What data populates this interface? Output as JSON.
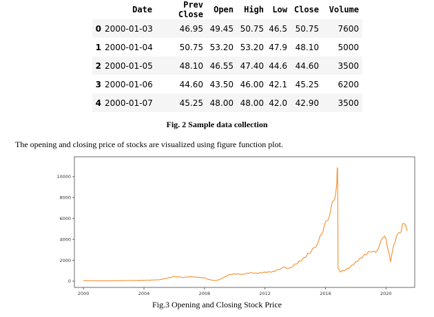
{
  "table": {
    "columns": [
      "",
      "Date",
      "Prev Close",
      "Open",
      "High",
      "Low",
      "Close",
      "Volume"
    ],
    "rows": [
      [
        "0",
        "2000-01-03",
        "46.95",
        "49.45",
        "50.75",
        "46.5",
        "50.75",
        "7600"
      ],
      [
        "1",
        "2000-01-04",
        "50.75",
        "53.20",
        "53.20",
        "47.9",
        "48.10",
        "5000"
      ],
      [
        "2",
        "2000-01-05",
        "48.10",
        "46.55",
        "47.40",
        "44.6",
        "44.60",
        "3500"
      ],
      [
        "3",
        "2000-01-06",
        "44.60",
        "43.50",
        "46.00",
        "42.1",
        "45.25",
        "6200"
      ],
      [
        "4",
        "2000-01-07",
        "45.25",
        "48.00",
        "48.00",
        "42.0",
        "42.90",
        "3500"
      ]
    ]
  },
  "captions": {
    "fig2": "Fig. 2 Sample data collection",
    "paragraph": "The opening and closing price of stocks are visualized using figure function plot.",
    "fig3": "Fig.3 Opening and Closing Stock Price"
  },
  "chart_data": {
    "type": "line",
    "title": "",
    "xlabel": "",
    "ylabel": "",
    "xlim": [
      1999.4,
      2021.9
    ],
    "ylim": [
      -600,
      11900
    ],
    "x_ticks": [
      "2000",
      "2004",
      "2008",
      "2012",
      "2016",
      "2020"
    ],
    "x_tick_values": [
      2000,
      2004,
      2008,
      2012,
      2016,
      2020
    ],
    "y_ticks": [
      "0",
      "2000",
      "4000",
      "6000",
      "8000",
      "10000"
    ],
    "y_tick_values": [
      0,
      2000,
      4000,
      6000,
      8000,
      10000
    ],
    "grid": false,
    "line_color": "#f28e2b",
    "series": [
      {
        "name": "",
        "x": [
          2000,
          2001,
          2002,
          2003,
          2004,
          2005,
          2005.5,
          2006,
          2006.3,
          2006.6,
          2007,
          2007.5,
          2008,
          2008.3,
          2008.6,
          2008.9,
          2009.2,
          2009.6,
          2010,
          2010.5,
          2011,
          2011.5,
          2012,
          2012.5,
          2013,
          2013.3,
          2013.6,
          2014,
          2014.5,
          2015,
          2015.3,
          2015.6,
          2016,
          2016.3,
          2016.6,
          2016.75,
          2016.8,
          2016.83,
          2017,
          2017.5,
          2018,
          2018.5,
          2019,
          2019.3,
          2019.6,
          2019.9,
          2020.1,
          2020.3,
          2020.5,
          2020.7,
          2021,
          2021.2,
          2021.4
        ],
        "y": [
          50,
          30,
          40,
          60,
          80,
          130,
          280,
          450,
          400,
          350,
          420,
          380,
          320,
          150,
          70,
          100,
          300,
          600,
          700,
          650,
          800,
          750,
          850,
          900,
          1150,
          1350,
          1200,
          1600,
          2100,
          2800,
          3200,
          4000,
          5500,
          6500,
          8000,
          9500,
          11300,
          1200,
          900,
          1200,
          1800,
          2400,
          2900,
          2700,
          3500,
          4500,
          3300,
          1900,
          3400,
          4200,
          4900,
          5700,
          4800
        ]
      }
    ]
  }
}
